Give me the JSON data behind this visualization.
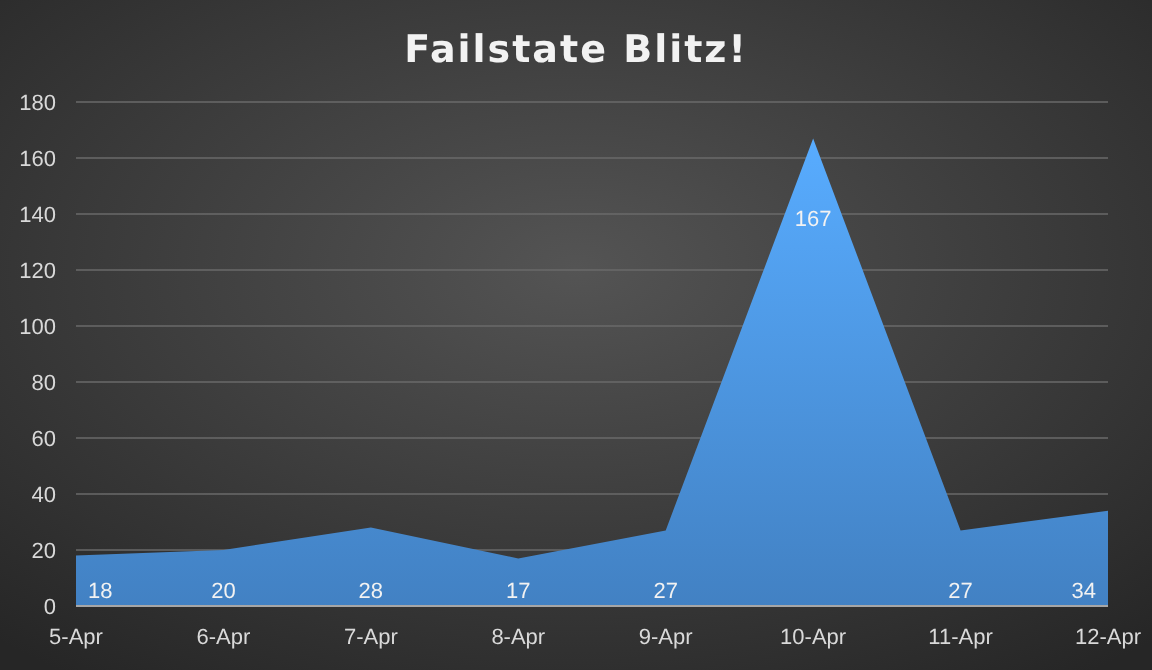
{
  "chart_data": {
    "type": "area",
    "title": "Failstate Blitz!",
    "categories": [
      "5-Apr",
      "6-Apr",
      "7-Apr",
      "8-Apr",
      "9-Apr",
      "10-Apr",
      "11-Apr",
      "12-Apr"
    ],
    "values": [
      18,
      20,
      28,
      17,
      27,
      167,
      27,
      34
    ],
    "color": "#4a90d9",
    "ylim": [
      0,
      180
    ],
    "yticks": [
      0,
      20,
      40,
      60,
      80,
      100,
      120,
      140,
      160,
      180
    ],
    "grid": "y",
    "data_labels": true
  }
}
